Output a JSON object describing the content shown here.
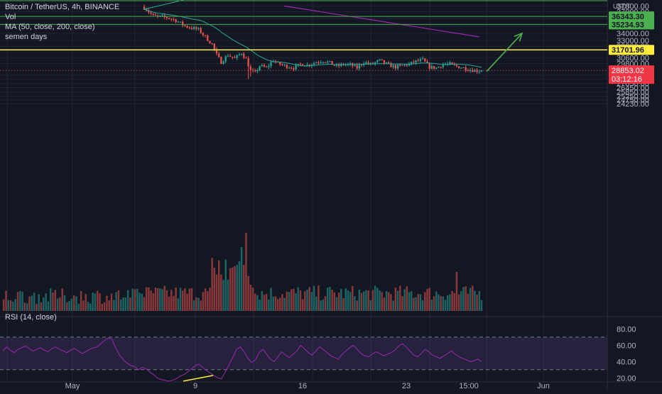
{
  "header": {
    "symbol_line": "Bitcoin / TetherUS, 4h, BINANCE",
    "vol_label": "Vol",
    "ma_label": "MA (50, close, 200, close)",
    "study_label": "semen days",
    "rsi_label": "RSI (14, close)",
    "unit": "USDT"
  },
  "colors": {
    "background": "#131722",
    "grid": "#1f2433",
    "up": "#26a69a",
    "down": "#ef5350",
    "ma50": "#26a69a",
    "ma200": "#9c27b0",
    "green_level": "#4caf50",
    "yellow_level": "#ffeb3b",
    "rsi": "#9c27b0",
    "arrow": "#4caf50",
    "current_price": "#f23645"
  },
  "chart_data": {
    "type": "candlestick",
    "price_ylim": [
      24230,
      37800
    ],
    "price_ticks": [
      "37800.00",
      "37000.00",
      "36000.00",
      "35000.00",
      "34000.00",
      "33000.00",
      "32200.00",
      "31400.00",
      "30600.00",
      "29800.00",
      "28800.00",
      "28250.00",
      "27650.00",
      "27050.00",
      "26450.00",
      "25850.00",
      "25250.00",
      "24750.00",
      "24230.00"
    ],
    "x_labels": [
      "May",
      "9",
      "16",
      "23",
      "15:00",
      "Jun"
    ],
    "levels": [
      {
        "value": 36343.3,
        "label": "36343.30",
        "color": "green"
      },
      {
        "value": 35234.93,
        "label": "35234.93",
        "color": "green"
      },
      {
        "value": 31701.96,
        "label": "31701.96",
        "color": "yellow"
      }
    ],
    "current_price": {
      "value": 28853.02,
      "label": "28853.02",
      "countdown": "03:12:16"
    },
    "ma200_segment": [
      [
        37800,
        400
      ],
      [
        33500,
        675
      ]
    ],
    "arrow": {
      "from": [
        28700,
        685
      ],
      "to": [
        34000,
        735
      ]
    },
    "rsi": {
      "ylim": [
        15,
        90
      ],
      "ticks": [
        "80.00",
        "60.00",
        "40.00",
        "20.00"
      ],
      "upper_band": 70,
      "lower_band": 30,
      "values": [
        53,
        58,
        54,
        51,
        55,
        57,
        59,
        56,
        53,
        55,
        57,
        54,
        52,
        56,
        58,
        55,
        53,
        51,
        54,
        56,
        53,
        50,
        52,
        55,
        57,
        58,
        62,
        66,
        69,
        67,
        56,
        48,
        42,
        38,
        35,
        34,
        30,
        33,
        31,
        27,
        24,
        20,
        18,
        17,
        16,
        17,
        19,
        22,
        24,
        27,
        31,
        35,
        37,
        33,
        29,
        26,
        23,
        20,
        19,
        27,
        36,
        45,
        55,
        58,
        52,
        44,
        39,
        42,
        51,
        55,
        49,
        43,
        40,
        46,
        52,
        48,
        45,
        49,
        53,
        60,
        56,
        51,
        48,
        53,
        58,
        55,
        51,
        47,
        45,
        43,
        49,
        53,
        57,
        60,
        55,
        50,
        47,
        46,
        49,
        52,
        50,
        47,
        49,
        51,
        54,
        59,
        62,
        58,
        53,
        48,
        46,
        50,
        55,
        52,
        48,
        46,
        44,
        47,
        50,
        53,
        49,
        46,
        44,
        42,
        40,
        41,
        43,
        40
      ]
    }
  }
}
